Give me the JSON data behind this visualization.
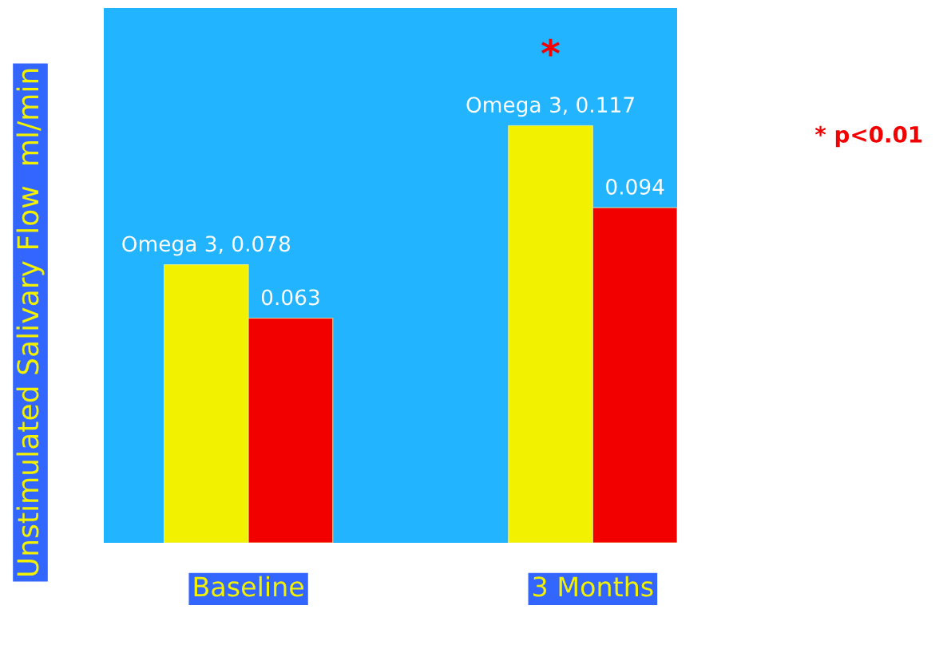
{
  "chart_data": {
    "type": "bar",
    "ylabel": "Unstimulated Salivary Flow  ml/min",
    "categories": [
      "Baseline",
      "3 Months"
    ],
    "series": [
      {
        "color": "#f2f200",
        "values": [
          0.078,
          0.117
        ],
        "value_labels": [
          "Omega 3, 0.078",
          "Omega 3, 0.117"
        ]
      },
      {
        "color": "#f20000",
        "values": [
          0.063,
          0.094
        ],
        "value_labels": [
          "0.063",
          "0.094"
        ]
      }
    ],
    "ylim": [
      0,
      0.15
    ],
    "tick_labels": "x",
    "grid": false,
    "legend": false,
    "annotations": [
      {
        "text": "*",
        "x": "3 Months",
        "y": 0.117
      },
      "* p<0.01"
    ]
  }
}
